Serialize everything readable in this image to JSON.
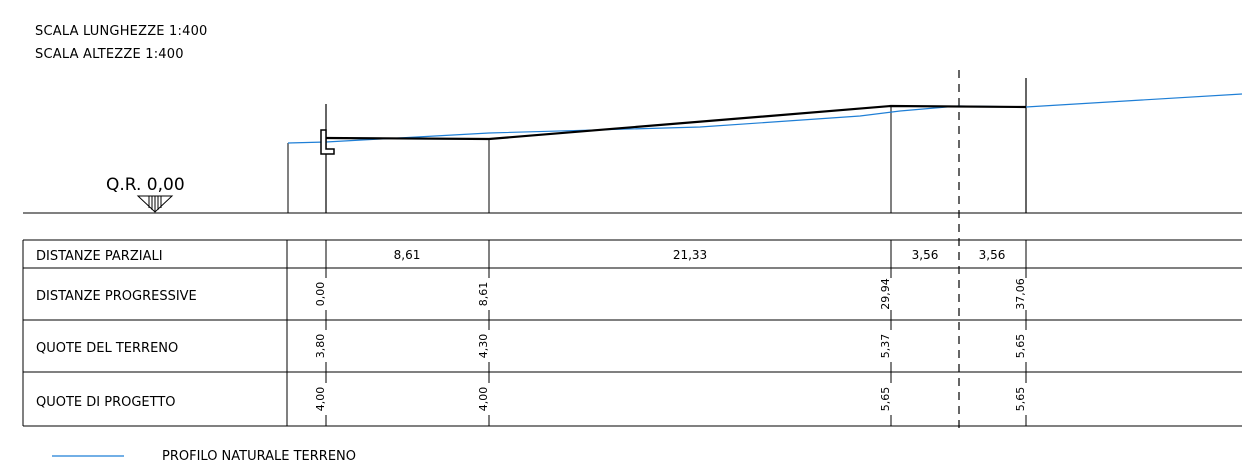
{
  "scales": {
    "lengths": "SCALA LUNGHEZZE 1:400",
    "heights": "SCALA ALTEZZE 1:400"
  },
  "reference_level": "Q.R. 0,00",
  "table": {
    "rows": [
      {
        "label": "DISTANZE PARZIALI"
      },
      {
        "label": "DISTANZE PROGRESSIVE"
      },
      {
        "label": "QUOTE DEL TERRENO"
      },
      {
        "label": "QUOTE DI PROGETTO"
      }
    ],
    "partial_distances": [
      "8,61",
      "21,33",
      "3,56",
      "3,56"
    ],
    "stations": [
      {
        "progressive": "0,00",
        "terrain": "3,80",
        "project": "4,00"
      },
      {
        "progressive": "8,61",
        "terrain": "4,30",
        "project": "4,00"
      },
      {
        "progressive": "29,94",
        "terrain": "5,37",
        "project": "5,65"
      },
      {
        "progressive": "37,06",
        "terrain": "5,65",
        "project": "5,65"
      }
    ]
  },
  "legend": {
    "terrain_profile": "PROFILO NATURALE TERRENO"
  },
  "colors": {
    "terrain_line": "#1f7fd6",
    "project_line": "#000000"
  }
}
